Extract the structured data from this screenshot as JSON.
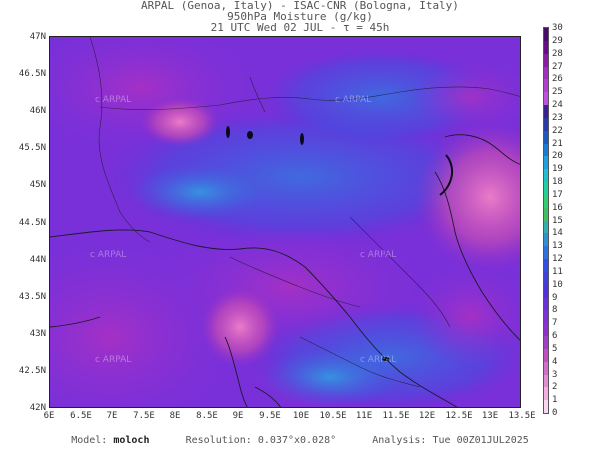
{
  "header": {
    "line1": "ARPAL (Genoa, Italy)  -  ISAC-CNR (Bologna, Italy)",
    "line2": "950hPa Moisture (g/kg)",
    "line3": "21 UTC Wed 02 JUL  -  τ = 45h"
  },
  "map": {
    "lat_labels": [
      "47N",
      "46.5N",
      "46N",
      "45.5N",
      "45N",
      "44.5N",
      "44N",
      "43.5N",
      "43N",
      "42.5N",
      "42N"
    ],
    "lon_labels": [
      "6E",
      "6.5E",
      "7E",
      "7.5E",
      "8E",
      "8.5E",
      "9E",
      "9.5E",
      "10E",
      "10.5E",
      "11E",
      "11.5E",
      "12E",
      "12.5E",
      "13E",
      "13.5E"
    ],
    "lat_range": [
      42,
      47
    ],
    "lon_range": [
      6,
      13.5
    ],
    "watermark": "c ARPAL"
  },
  "colorbar": {
    "labels": [
      "30",
      "29",
      "28",
      "27",
      "26",
      "25",
      "24",
      "23",
      "22",
      "21",
      "20",
      "19",
      "18",
      "17",
      "16",
      "15",
      "14",
      "13",
      "12",
      "11",
      "10",
      "9",
      "8",
      "7",
      "6",
      "5",
      "4",
      "3",
      "2",
      "1",
      "0"
    ],
    "colors": [
      "#4a0a6a",
      "#6a0a8a",
      "#8a1aa8",
      "#a030c0",
      "#b040d0",
      "#c050e0",
      "#3a2090",
      "#2a3aa8",
      "#1a5ac0",
      "#1a7ad8",
      "#20a0e0",
      "#20c0d0",
      "#20d0a0",
      "#30d070",
      "#40c060",
      "#30b0b0",
      "#3090d0",
      "#3070e0",
      "#3050e8",
      "#4040e0",
      "#5030e0",
      "#6a30e0",
      "#8030d8",
      "#9030d0",
      "#a040c8",
      "#c050c0",
      "#d070c8",
      "#e090d0",
      "#f0b0e0",
      "#f8d8f0"
    ]
  },
  "footer": {
    "model_label": "Model:",
    "model_value": "moloch",
    "resolution_label": "Resolution:",
    "resolution_value": "0.037°x0.028°",
    "analysis_label": "Analysis:",
    "analysis_value": "Tue 00Z01JUL2025"
  }
}
